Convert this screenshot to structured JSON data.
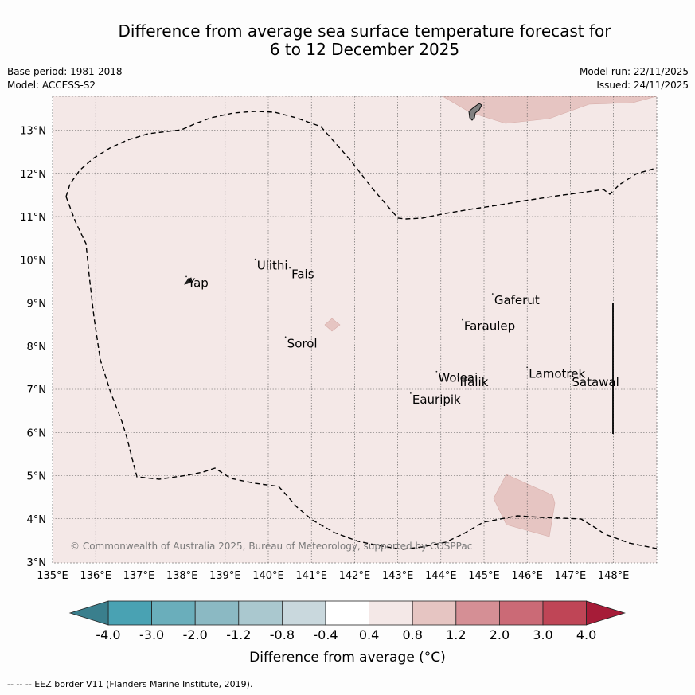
{
  "title": {
    "line1": "Difference from average sea surface temperature forecast for",
    "line2": "6 to 12 December 2025"
  },
  "meta": {
    "base_period": "Base period: 1981-2018",
    "model": "Model: ACCESS-S2",
    "model_run": "Model run: 22/11/2025",
    "issued": "Issued: 24/11/2025"
  },
  "map": {
    "lon_range": [
      135,
      149
    ],
    "lat_range": [
      3,
      13.8
    ],
    "lon_ticks": [
      "135°E",
      "136°E",
      "137°E",
      "138°E",
      "139°E",
      "140°E",
      "141°E",
      "142°E",
      "143°E",
      "144°E",
      "145°E",
      "146°E",
      "147°E",
      "148°E"
    ],
    "lat_ticks": [
      "3°N",
      "4°N",
      "5°N",
      "6°N",
      "7°N",
      "8°N",
      "9°N",
      "10°N",
      "11°N",
      "12°N",
      "13°N"
    ],
    "copyright": "© Commonwealth of Australia 2025, Bureau of Meteorology, supported by COSPPac",
    "background_color": "#f4e8e7",
    "patch_color": "#e6c5c2",
    "places": [
      {
        "name": "Ulithi",
        "lon": 139.7,
        "lat": 9.9
      },
      {
        "name": "Fais",
        "lon": 140.5,
        "lat": 9.7
      },
      {
        "name": "Yap",
        "lon": 138.1,
        "lat": 9.5
      },
      {
        "name": "Gaferut",
        "lon": 145.2,
        "lat": 9.1
      },
      {
        "name": "Faraulep",
        "lon": 144.5,
        "lat": 8.5
      },
      {
        "name": "Sorol",
        "lon": 140.4,
        "lat": 8.1
      },
      {
        "name": "Lamotrek",
        "lon": 146.0,
        "lat": 7.4
      },
      {
        "name": "Woleai",
        "lon": 143.9,
        "lat": 7.3
      },
      {
        "name": "Ifalik",
        "lon": 144.4,
        "lat": 7.2
      },
      {
        "name": "Satawal",
        "lon": 147.0,
        "lat": 7.2
      },
      {
        "name": "Eauripik",
        "lon": 143.3,
        "lat": 6.8
      }
    ]
  },
  "colorbar": {
    "labels": [
      "-4.0",
      "-3.0",
      "-2.0",
      "-1.2",
      "-0.8",
      "-0.4",
      "0.4",
      "0.8",
      "1.2",
      "2.0",
      "3.0",
      "4.0"
    ],
    "colors": [
      "#49a2b3",
      "#6aaebb",
      "#8bb9c3",
      "#aac8cf",
      "#c9d8dd",
      "#ffffff",
      "#f4e8e7",
      "#e6c5c2",
      "#d58f95",
      "#cb6a76",
      "#bf4556"
    ],
    "under_color": "#3a7f8d",
    "over_color": "#a61c38",
    "label": "Difference from average (°C)"
  },
  "footnote": "--  --  -- EEZ border V11 (Flanders Marine Institute, 2019)."
}
